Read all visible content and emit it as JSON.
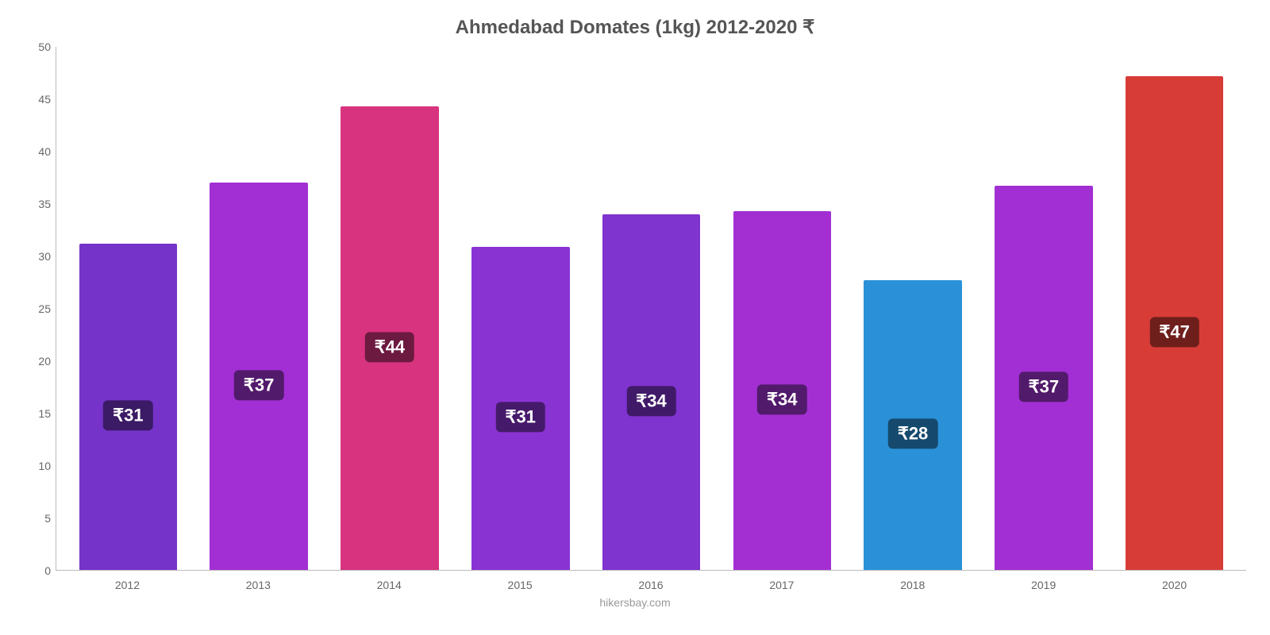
{
  "chart": {
    "type": "bar",
    "title": "Ahmedabad Domates (1kg) 2012-2020 ₹",
    "title_fontsize": 24,
    "title_color": "#555555",
    "attribution": "hikersbay.com",
    "background_color": "#ffffff",
    "ylim": [
      0,
      50
    ],
    "ytick_step": 5,
    "yticks": [
      0,
      5,
      10,
      15,
      20,
      25,
      30,
      35,
      40,
      45,
      50
    ],
    "axis_color": "#bbbbbb",
    "tick_label_color": "#666666",
    "tick_label_fontsize": 14,
    "bar_width_pct": 75,
    "value_prefix": "₹",
    "bar_label_fontsize": 22,
    "bar_label_text_color": "#ffffff",
    "categories": [
      "2012",
      "2013",
      "2014",
      "2015",
      "2016",
      "2017",
      "2018",
      "2019",
      "2020"
    ],
    "values": [
      31,
      37,
      44,
      31,
      34,
      34,
      28,
      37,
      47
    ],
    "bar_colors": [
      "#7533c9",
      "#a22fd3",
      "#d8337f",
      "#8a33d3",
      "#7f33cf",
      "#a32fd3",
      "#2a91d8",
      "#a22fd3",
      "#d83c36"
    ],
    "label_bg_colors": [
      "#3b1a66",
      "#521a6b",
      "#6d1a41",
      "#461a6b",
      "#401a69",
      "#521a6b",
      "#154a6e",
      "#521a6b",
      "#6e1f1c"
    ],
    "exact_values": [
      31.2,
      37.0,
      44.3,
      30.9,
      34.0,
      34.3,
      27.7,
      36.7,
      47.2
    ]
  }
}
